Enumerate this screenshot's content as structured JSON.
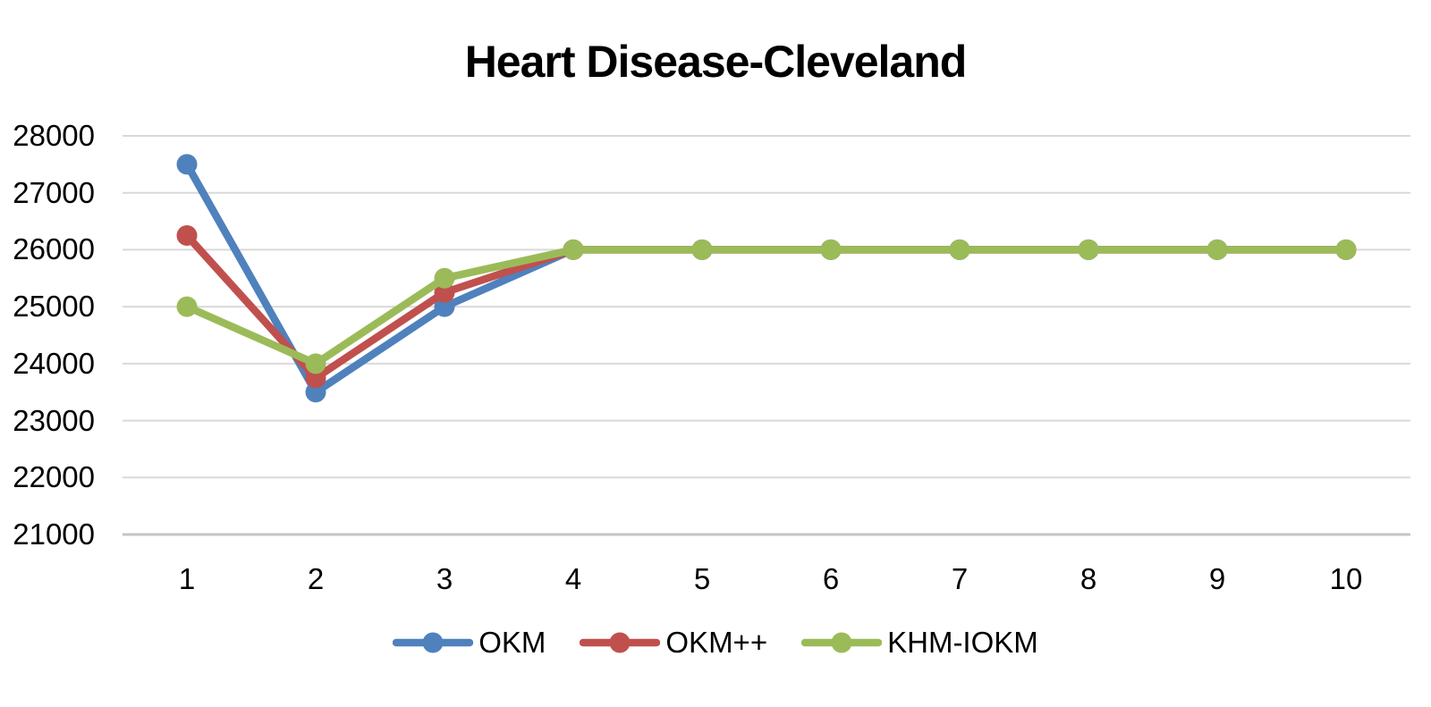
{
  "chart_data": {
    "type": "line",
    "title": "Heart Disease-Cleveland",
    "x": [
      1,
      2,
      3,
      4,
      5,
      6,
      7,
      8,
      9,
      10
    ],
    "series": [
      {
        "name": "OKM",
        "color": "#4F81BD",
        "values": [
          27500,
          23500,
          25000,
          26000,
          26000,
          26000,
          26000,
          26000,
          26000,
          26000
        ]
      },
      {
        "name": "OKM++",
        "color": "#C0504D",
        "values": [
          26250,
          23750,
          25250,
          26000,
          26000,
          26000,
          26000,
          26000,
          26000,
          26000
        ]
      },
      {
        "name": "KHM-IOKM",
        "color": "#9BBB59",
        "values": [
          25000,
          24000,
          25500,
          26000,
          26000,
          26000,
          26000,
          26000,
          26000,
          26000
        ]
      }
    ],
    "ylim": [
      21000,
      28000
    ],
    "yticks": [
      28000,
      27000,
      26000,
      25000,
      24000,
      23000,
      22000,
      21000
    ],
    "grid": true,
    "legend_position": "bottom",
    "marker": "circle"
  },
  "colors": {
    "gridline": "#D9D9D9",
    "axis_line": "#C4C4C4",
    "text": "#000000",
    "background": "#FFFFFF"
  }
}
